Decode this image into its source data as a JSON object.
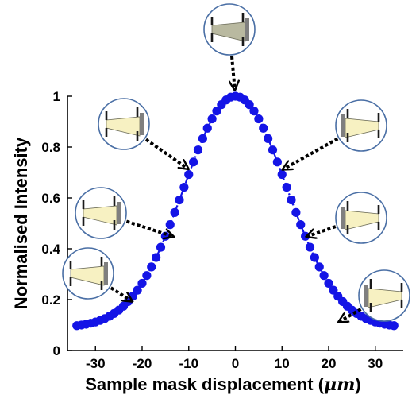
{
  "chart_data": {
    "type": "scatter",
    "title": "",
    "xlabel": "Sample mask displacement (μm)",
    "xlabel_parts": {
      "prefix": "Sample mask displacement (",
      "unit": "μm",
      "suffix": ")"
    },
    "ylabel": "Normalised Intensity",
    "xlim": [
      -36,
      36
    ],
    "ylim": [
      0,
      1
    ],
    "x_ticks": [
      -30,
      -20,
      -10,
      0,
      10,
      20,
      30
    ],
    "x_tick_labels": [
      "-30",
      "-20",
      "-10",
      "0",
      "10",
      "20",
      "30"
    ],
    "y_ticks": [
      0,
      0.2,
      0.4,
      0.6,
      0.8,
      1
    ],
    "y_tick_labels": [
      "0",
      "0.2",
      "0.4",
      "0.6",
      "0.8",
      "1"
    ],
    "grid": false,
    "legend": "none",
    "series": [
      {
        "color": "#1414e6",
        "line_style": "dashdot",
        "model": {
          "kind": "gaussian",
          "baseline": 0.09,
          "amplitude": 0.91,
          "sigma": 11,
          "x_start": -34,
          "x_end": 34,
          "x_step": 1.0
        }
      }
    ],
    "annotations": [
      {
        "name": "top-beam-diagram",
        "highlight": "dark",
        "target": {
          "x": 0,
          "y": 1.0
        }
      },
      {
        "name": "left-upper-beam-diagram",
        "highlight": "light",
        "target": {
          "x": -9,
          "y": 0.7
        }
      },
      {
        "name": "left-middle-beam-diagram",
        "highlight": "light",
        "target": {
          "x": -12,
          "y": 0.44
        }
      },
      {
        "name": "left-lower-beam-diagram",
        "highlight": "light",
        "target": {
          "x": -21,
          "y": 0.18
        }
      },
      {
        "name": "right-upper-beam-diagram",
        "highlight": "light",
        "target": {
          "x": 9,
          "y": 0.7
        }
      },
      {
        "name": "right-middle-beam-diagram",
        "highlight": "light",
        "target": {
          "x": 14,
          "y": 0.44
        }
      },
      {
        "name": "right-lower-beam-diagram",
        "highlight": "light",
        "target": {
          "x": 21,
          "y": 0.1
        }
      }
    ]
  },
  "colors": {
    "marker": "#1414e6",
    "bubble_stroke": "#4a6fa5",
    "beam_light": "#f7f1c2",
    "beam_dark": "#b9b9a0",
    "mask": "#1a1a1a",
    "mask_right": "#7f7f7f",
    "arrow": "#000000"
  }
}
